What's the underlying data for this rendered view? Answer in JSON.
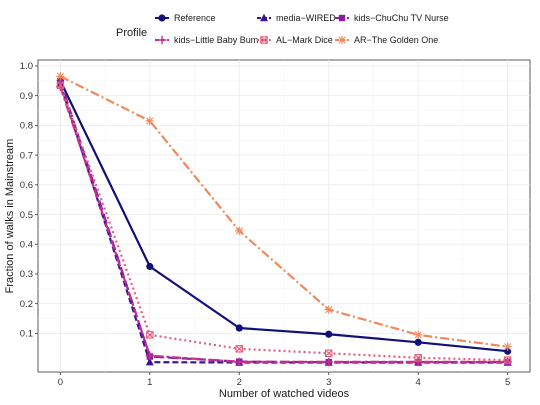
{
  "chart_data": {
    "type": "line",
    "title": "",
    "xlabel": "Number of watched videos",
    "ylabel": "Fraction of walks in Mainstream",
    "x": [
      0,
      1,
      2,
      3,
      4,
      5
    ],
    "xlim": [
      -0.25,
      5.25
    ],
    "ylim": [
      -0.03,
      1.02
    ],
    "x_ticks": [
      "0",
      "1",
      "2",
      "3",
      "4",
      "5"
    ],
    "y_ticks": [
      "0.1",
      "0.2",
      "0.3",
      "0.4",
      "0.5",
      "0.6",
      "0.7",
      "0.8",
      "0.9",
      "1.0"
    ],
    "grid": true,
    "legend": {
      "title": "Profile",
      "placement": "top"
    },
    "series": [
      {
        "name": "Reference",
        "color": "#10107a",
        "dash": "solid",
        "marker": "circle",
        "values": [
          0.95,
          0.325,
          0.118,
          0.097,
          0.07,
          0.04
        ]
      },
      {
        "name": "media−WIRED",
        "color": "#3a1494",
        "dash": "dashed",
        "marker": "triangle",
        "values": [
          0.94,
          0.003,
          0.002,
          0.002,
          0.002,
          0.002
        ]
      },
      {
        "name": "kids−ChuChu TV Nurse",
        "color": "#8a1c9e",
        "dash": "longdash",
        "marker": "square",
        "values": [
          0.95,
          0.022,
          0.005,
          0.003,
          0.003,
          0.003
        ]
      },
      {
        "name": "kids−Little Baby Bum",
        "color": "#c42f8e",
        "dash": "twodash",
        "marker": "plus",
        "values": [
          0.93,
          0.025,
          0.004,
          0.004,
          0.004,
          0.004
        ]
      },
      {
        "name": "AL−Mark Dice",
        "color": "#e3607c",
        "dash": "dotted",
        "marker": "boxcross",
        "values": [
          0.935,
          0.095,
          0.048,
          0.033,
          0.018,
          0.01
        ]
      },
      {
        "name": "AR−The Golden One",
        "color": "#f0895a",
        "dash": "dotdash",
        "marker": "asterisk",
        "values": [
          0.965,
          0.815,
          0.445,
          0.18,
          0.095,
          0.055
        ]
      }
    ]
  }
}
